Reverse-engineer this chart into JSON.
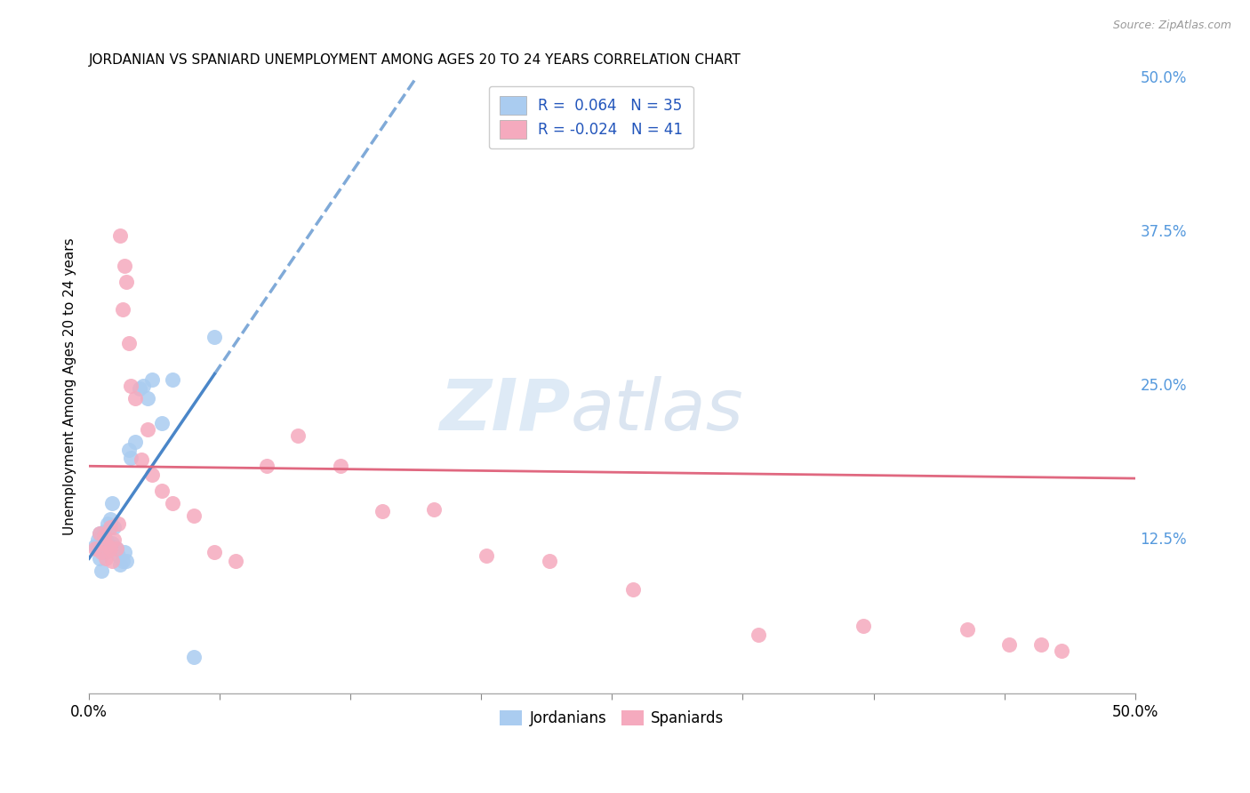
{
  "title": "JORDANIAN VS SPANIARD UNEMPLOYMENT AMONG AGES 20 TO 24 YEARS CORRELATION CHART",
  "source": "Source: ZipAtlas.com",
  "ylabel": "Unemployment Among Ages 20 to 24 years",
  "xlim": [
    0.0,
    0.5
  ],
  "ylim": [
    0.0,
    0.5
  ],
  "yticks_right": [
    0.125,
    0.25,
    0.375,
    0.5
  ],
  "ytick_right_labels": [
    "12.5%",
    "25.0%",
    "37.5%",
    "50.0%"
  ],
  "xtick_positions": [
    0.0,
    0.0625,
    0.125,
    0.1875,
    0.25,
    0.3125,
    0.375,
    0.4375,
    0.5
  ],
  "jordanians_R": 0.064,
  "jordanians_N": 35,
  "spaniards_R": -0.024,
  "spaniards_N": 41,
  "jordanian_color": "#aaccf0",
  "spaniard_color": "#f5aabe",
  "trend_jordan_color": "#4a86c8",
  "trend_spain_color": "#e06880",
  "right_label_color": "#5599dd",
  "background_color": "#ffffff",
  "grid_color": "#cccccc",
  "jordanians_x": [
    0.003,
    0.004,
    0.004,
    0.005,
    0.005,
    0.006,
    0.006,
    0.007,
    0.007,
    0.008,
    0.008,
    0.009,
    0.009,
    0.01,
    0.01,
    0.011,
    0.011,
    0.012,
    0.013,
    0.014,
    0.015,
    0.016,
    0.017,
    0.018,
    0.019,
    0.02,
    0.022,
    0.024,
    0.026,
    0.028,
    0.03,
    0.035,
    0.04,
    0.05,
    0.06
  ],
  "jordanians_y": [
    0.12,
    0.118,
    0.125,
    0.11,
    0.13,
    0.128,
    0.1,
    0.132,
    0.12,
    0.125,
    0.115,
    0.118,
    0.138,
    0.12,
    0.142,
    0.122,
    0.155,
    0.135,
    0.118,
    0.112,
    0.105,
    0.108,
    0.115,
    0.108,
    0.198,
    0.192,
    0.205,
    0.248,
    0.25,
    0.24,
    0.255,
    0.22,
    0.255,
    0.03,
    0.29
  ],
  "spaniards_x": [
    0.003,
    0.005,
    0.006,
    0.007,
    0.008,
    0.009,
    0.01,
    0.01,
    0.011,
    0.012,
    0.013,
    0.014,
    0.015,
    0.016,
    0.017,
    0.018,
    0.019,
    0.02,
    0.022,
    0.025,
    0.028,
    0.03,
    0.035,
    0.04,
    0.05,
    0.06,
    0.07,
    0.085,
    0.1,
    0.12,
    0.14,
    0.165,
    0.19,
    0.22,
    0.26,
    0.32,
    0.37,
    0.42,
    0.44,
    0.455,
    0.465
  ],
  "spaniards_y": [
    0.118,
    0.13,
    0.115,
    0.128,
    0.11,
    0.12,
    0.118,
    0.135,
    0.108,
    0.125,
    0.118,
    0.138,
    0.372,
    0.312,
    0.348,
    0.335,
    0.285,
    0.25,
    0.24,
    0.19,
    0.215,
    0.178,
    0.165,
    0.155,
    0.145,
    0.115,
    0.108,
    0.185,
    0.21,
    0.185,
    0.148,
    0.15,
    0.112,
    0.108,
    0.085,
    0.048,
    0.055,
    0.052,
    0.04,
    0.04,
    0.035
  ],
  "watermark_zip": "ZIP",
  "watermark_atlas": "atlas",
  "legend_label1": "R =  0.064   N = 35",
  "legend_label2": "R = -0.024   N = 41"
}
